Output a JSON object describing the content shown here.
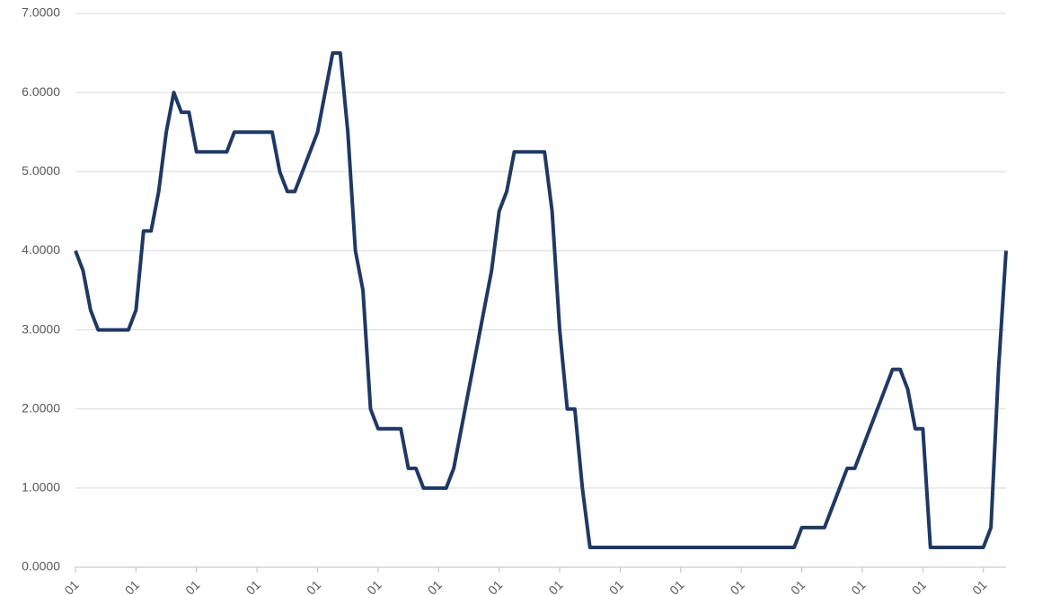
{
  "chart_data": {
    "type": "line",
    "categories": [
      "01",
      null,
      null,
      null,
      null,
      null,
      null,
      null,
      "01",
      null,
      null,
      null,
      null,
      null,
      null,
      null,
      "01",
      null,
      null,
      null,
      null,
      null,
      null,
      null,
      "01",
      null,
      null,
      null,
      null,
      null,
      null,
      null,
      "01",
      null,
      null,
      null,
      null,
      null,
      null,
      null,
      "01",
      null,
      null,
      null,
      null,
      null,
      null,
      null,
      "01",
      null,
      null,
      null,
      null,
      null,
      null,
      null,
      "01",
      null,
      null,
      null,
      null,
      null,
      null,
      null,
      "01",
      null,
      null,
      null,
      null,
      null,
      null,
      null,
      "01",
      null,
      null,
      null,
      null,
      null,
      null,
      null,
      "01",
      null,
      null,
      null,
      null,
      null,
      null,
      null,
      "01",
      null,
      null,
      null,
      null,
      null,
      null,
      null,
      "01",
      null,
      null,
      null,
      null,
      null,
      null,
      null,
      "01",
      null,
      null,
      null,
      null,
      null,
      null,
      null,
      "01",
      null,
      null,
      null,
      null,
      null,
      null,
      null,
      "01",
      null,
      null,
      null
    ],
    "series": [
      {
        "color": "#1f3864",
        "values": [
          4.0,
          3.75,
          3.25,
          3.0,
          3.0,
          3.0,
          3.0,
          3.0,
          3.25,
          4.25,
          4.25,
          4.75,
          5.5,
          6.0,
          5.75,
          5.75,
          5.25,
          5.25,
          5.25,
          5.25,
          5.25,
          5.5,
          5.5,
          5.5,
          5.5,
          5.5,
          5.5,
          5.0,
          4.75,
          4.75,
          5.0,
          5.25,
          5.5,
          6.0,
          6.5,
          6.5,
          5.5,
          4.0,
          3.5,
          2.0,
          1.75,
          1.75,
          1.75,
          1.75,
          1.25,
          1.25,
          1.0,
          1.0,
          1.0,
          1.0,
          1.25,
          1.75,
          2.25,
          2.75,
          3.25,
          3.75,
          4.5,
          4.75,
          5.25,
          5.25,
          5.25,
          5.25,
          5.25,
          4.5,
          3.0,
          2.0,
          2.0,
          1.0,
          0.25,
          0.25,
          0.25,
          0.25,
          0.25,
          0.25,
          0.25,
          0.25,
          0.25,
          0.25,
          0.25,
          0.25,
          0.25,
          0.25,
          0.25,
          0.25,
          0.25,
          0.25,
          0.25,
          0.25,
          0.25,
          0.25,
          0.25,
          0.25,
          0.25,
          0.25,
          0.25,
          0.25,
          0.5,
          0.5,
          0.5,
          0.5,
          0.75,
          1.0,
          1.25,
          1.25,
          1.5,
          1.75,
          2.0,
          2.25,
          2.5,
          2.5,
          2.25,
          1.75,
          1.75,
          0.25,
          0.25,
          0.25,
          0.25,
          0.25,
          0.25,
          0.25,
          0.25,
          0.5,
          2.5,
          4.0
        ]
      }
    ],
    "ylim": [
      0,
      7
    ],
    "yticks": [
      {
        "value": 0,
        "label": "0.0000"
      },
      {
        "value": 1,
        "label": "1.0000"
      },
      {
        "value": 2,
        "label": "2.0000"
      },
      {
        "value": 3,
        "label": "3.0000"
      },
      {
        "value": 4,
        "label": "4.0000"
      },
      {
        "value": 5,
        "label": "5.0000"
      },
      {
        "value": 6,
        "label": "6.0000"
      },
      {
        "value": 7,
        "label": "7.0000"
      }
    ],
    "grid": true
  }
}
